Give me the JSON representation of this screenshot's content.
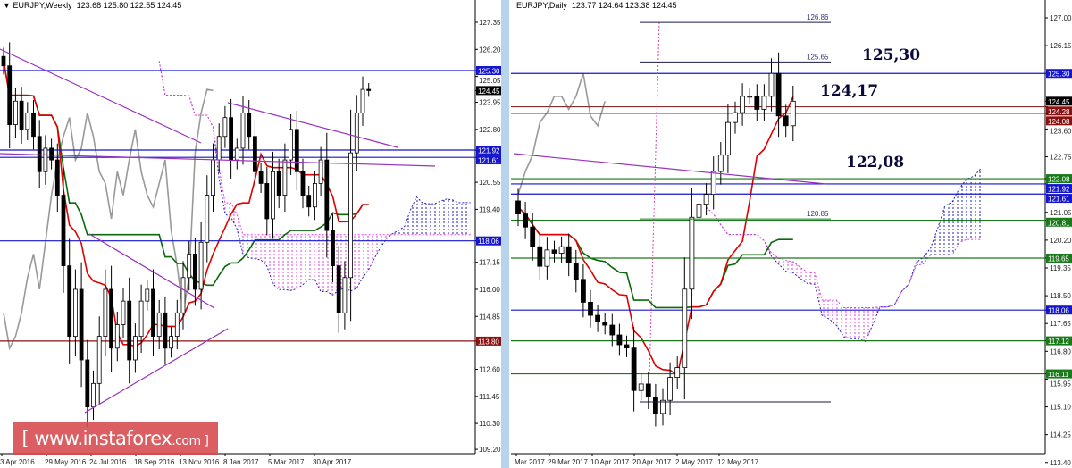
{
  "left": {
    "symbol": "EURJPY,Weekly",
    "ohlc_text": "123.68 125.80 122.55 124.45",
    "price_ticks": [
      "127.35",
      "126.20",
      "125.05",
      "123.95",
      "122.80",
      "120.55",
      "119.40",
      "117.15",
      "116.00",
      "114.85",
      "112.60",
      "111.45",
      "110.30",
      "109.20"
    ],
    "price_tags": [
      {
        "label": "125.30",
        "color": "#1515d0"
      },
      {
        "label": "124.45",
        "color": "#000000"
      },
      {
        "label": "121.92",
        "color": "#1515d0"
      },
      {
        "label": "121.61",
        "color": "#1515d0"
      },
      {
        "label": "118.06",
        "color": "#1515d0"
      },
      {
        "label": "113.80",
        "color": "#8b1010"
      }
    ],
    "date_labels": [
      "3 Apr 2016",
      "29 May 2016",
      "24 Jul 2016",
      "18 Sep 2016",
      "13 Nov 2016",
      "8 Jan 2017",
      "5 Mar 2017",
      "30 Apr 2017"
    ]
  },
  "right": {
    "symbol": "EURJPY,Daily",
    "ohlc_text": "123.77 124.64 123.38 124.45",
    "price_ticks": [
      "127.00",
      "126.15",
      "123.60",
      "122.75",
      "121.05",
      "120.20",
      "119.35",
      "118.50",
      "117.65",
      "116.80",
      "115.95",
      "115.10",
      "114.25",
      "113.40"
    ],
    "price_tags": [
      {
        "label": "125.30",
        "color": "#1515d0"
      },
      {
        "label": "124.45",
        "color": "#000000"
      },
      {
        "label": "124.28",
        "color": "#8b1010"
      },
      {
        "label": "124.08",
        "color": "#8b1010"
      },
      {
        "label": "122.08",
        "color": "#1a7a1a"
      },
      {
        "label": "121.92",
        "color": "#1515d0"
      },
      {
        "label": "121.61",
        "color": "#1515d0"
      },
      {
        "label": "120.81",
        "color": "#1a7a1a"
      },
      {
        "label": "119.65",
        "color": "#1a7a1a"
      },
      {
        "label": "118.06",
        "color": "#1515d0"
      },
      {
        "label": "117.12",
        "color": "#1a7a1a"
      },
      {
        "label": "116.11",
        "color": "#1a7a1a"
      }
    ],
    "fib_levels": [
      "126.86",
      "125.65",
      "120.85"
    ],
    "annotations": [
      "125,30",
      "124,17",
      "122,08"
    ],
    "date_labels": [
      "Mar 2017",
      "29 Mar 2017",
      "10 Apr 2017",
      "20 Apr 2017",
      "2 May 2017",
      "12 May 2017"
    ]
  },
  "logo": {
    "main": "[ www.instaforex",
    "suffix": ".com ]"
  },
  "chart_data": [
    {
      "type": "candlestick",
      "title": "EURJPY,Weekly",
      "ylim": [
        109.2,
        127.35
      ],
      "closes": [
        125.5,
        123,
        124,
        122.8,
        123.5,
        122.5,
        121,
        122,
        121.5,
        120,
        117,
        114,
        116,
        113,
        111,
        112,
        114,
        116,
        113.5,
        114.5,
        115.5,
        113,
        114,
        115.5,
        116,
        114,
        115,
        113.5,
        114,
        115,
        116.5,
        117.5,
        116,
        118,
        120,
        121.5,
        122.5,
        123.3,
        121.5,
        122,
        123.5,
        122.5,
        121,
        120.5,
        119,
        121,
        120,
        121.5,
        122.8,
        121,
        120,
        119.5,
        120.5,
        121.5,
        118.5,
        117,
        115,
        116.5,
        121.8,
        123.5,
        124.5,
        124.45
      ],
      "horizontal_levels": [
        {
          "value": 125.3,
          "color": "#1515d0"
        },
        {
          "value": 121.92,
          "color": "#1515d0"
        },
        {
          "value": 121.61,
          "color": "#1515d0"
        },
        {
          "value": 118.06,
          "color": "#1515d0"
        },
        {
          "value": 113.8,
          "color": "#8b1010"
        }
      ]
    },
    {
      "type": "candlestick",
      "title": "EURJPY,Daily",
      "ylim": [
        113.4,
        127.0
      ],
      "closes": [
        121.0,
        120.6,
        120.0,
        119.4,
        119.9,
        119.8,
        120.0,
        119.5,
        119.0,
        118.3,
        117.9,
        117.7,
        117.6,
        117.3,
        117.0,
        116.9,
        115.6,
        115.8,
        115.4,
        114.9,
        115.3,
        116.0,
        116.3,
        118.7,
        120.9,
        121.3,
        121.6,
        122.3,
        122.8,
        123.8,
        124.1,
        124.6,
        124.6,
        124.2,
        124.6,
        125.3,
        124.0,
        123.7,
        124.45
      ],
      "horizontal_levels": [
        {
          "value": 125.3,
          "color": "#1515d0"
        },
        {
          "value": 124.28,
          "color": "#8b3030"
        },
        {
          "value": 124.08,
          "color": "#8b3030"
        },
        {
          "value": 122.08,
          "color": "#1a7a1a"
        },
        {
          "value": 121.92,
          "color": "#1515d0"
        },
        {
          "value": 121.61,
          "color": "#1515d0"
        },
        {
          "value": 120.81,
          "color": "#1a7a1a"
        },
        {
          "value": 119.65,
          "color": "#1a7a1a"
        },
        {
          "value": 118.06,
          "color": "#1515d0"
        },
        {
          "value": 117.12,
          "color": "#1a7a1a"
        },
        {
          "value": 116.11,
          "color": "#1a7a1a"
        }
      ],
      "fib_levels": [
        126.86,
        125.65,
        120.85
      ]
    }
  ],
  "colors": {
    "tenkan": "#e00000",
    "kijun": "#0a6a0a",
    "chikou": "#999999",
    "cloud_bull": "#2020c0",
    "cloud_bear": "#e040e0",
    "trendline": "#9a30c0"
  }
}
